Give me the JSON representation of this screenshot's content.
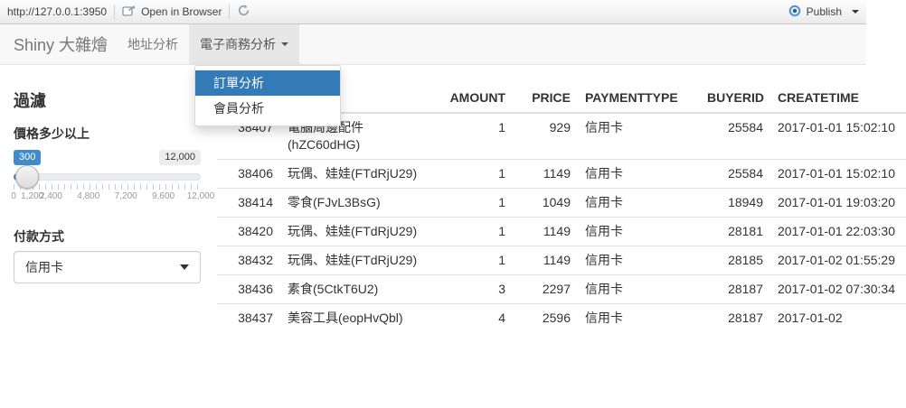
{
  "toolbar": {
    "url": "http://127.0.0.1:3950",
    "open_in_browser_label": "Open in Browser",
    "publish_label": "Publish"
  },
  "navbar": {
    "brand": "Shiny 大雜燴",
    "tabs": [
      {
        "label": "地址分析",
        "active": false
      },
      {
        "label": "電子商務分析",
        "active": true,
        "has_caret": true
      }
    ]
  },
  "dropdown_menu": {
    "items": [
      {
        "label": "訂單分析",
        "active": true
      },
      {
        "label": "會員分析",
        "active": false
      }
    ]
  },
  "sidebar": {
    "title": "過濾",
    "price_filter": {
      "label": "價格多少以上",
      "value": "300",
      "max_label": "12,000",
      "min": 0,
      "max": 12000,
      "tick_labels": [
        {
          "text": "0",
          "pct": 0
        },
        {
          "text": "1,200",
          "pct": 10
        },
        {
          "text": "2,400",
          "pct": 20
        },
        {
          "text": "4,800",
          "pct": 40
        },
        {
          "text": "7,200",
          "pct": 60
        },
        {
          "text": "9,600",
          "pct": 80
        },
        {
          "text": "12,000",
          "pct": 100
        }
      ]
    },
    "payment_filter": {
      "label": "付款方式",
      "selected": "信用卡"
    }
  },
  "table": {
    "columns": [
      {
        "key": "orderid",
        "label": "",
        "align": "right"
      },
      {
        "key": "product",
        "label": "",
        "align": "left"
      },
      {
        "key": "amount",
        "label": "AMOUNT",
        "align": "right"
      },
      {
        "key": "price",
        "label": "PRICE",
        "align": "right"
      },
      {
        "key": "paymenttype",
        "label": "PAYMENTTYPE",
        "align": "left"
      },
      {
        "key": "buyerid",
        "label": "BUYERID",
        "align": "right"
      },
      {
        "key": "createtime",
        "label": "CREATETIME",
        "align": "left"
      }
    ],
    "rows": [
      [
        "38407",
        "電腦周邊配件(hZC60dHG)",
        "1",
        "929",
        "信用卡",
        "25584",
        "2017-01-01 15:02:10"
      ],
      [
        "38406",
        "玩偶、娃娃(FTdRjU29)",
        "1",
        "1149",
        "信用卡",
        "25584",
        "2017-01-01 15:02:10"
      ],
      [
        "38414",
        "零食(FJvL3BsG)",
        "1",
        "1049",
        "信用卡",
        "18949",
        "2017-01-01 19:03:20"
      ],
      [
        "38420",
        "玩偶、娃娃(FTdRjU29)",
        "1",
        "1149",
        "信用卡",
        "28181",
        "2017-01-01 22:03:30"
      ],
      [
        "38432",
        "玩偶、娃娃(FTdRjU29)",
        "1",
        "1149",
        "信用卡",
        "28185",
        "2017-01-02 01:55:29"
      ],
      [
        "38436",
        "素食(5CtkT6U2)",
        "3",
        "2297",
        "信用卡",
        "28187",
        "2017-01-02 07:30:34"
      ],
      [
        "38437",
        "美容工具(eopHvQbl)",
        "4",
        "2596",
        "信用卡",
        "28187",
        "2017-01-02"
      ]
    ]
  },
  "colors": {
    "accent_blue": "#337ab7",
    "slider_badge_blue": "#428bca",
    "navbar_bg": "#f8f8f8",
    "active_tab_bg": "#e7e7e7",
    "table_border": "#dddddd"
  }
}
